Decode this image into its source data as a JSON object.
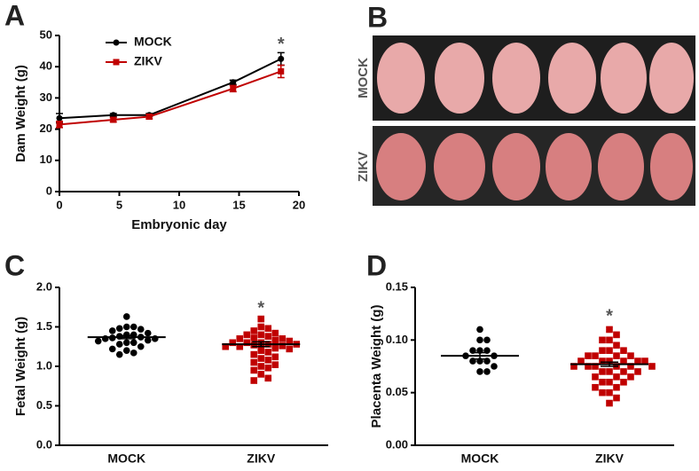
{
  "chart_data": [
    {
      "type": "line",
      "panel": "A",
      "xlabel": "Embryonic day",
      "ylabel": "Dam Weight (g)",
      "x": [
        0,
        4.5,
        7.5,
        14.5,
        18.5
      ],
      "series": [
        {
          "name": "MOCK",
          "color": "#000000",
          "marker": "circle",
          "values": [
            23.5,
            24.5,
            24.5,
            35,
            42.5
          ],
          "errors": [
            1.5,
            0.5,
            0.5,
            0.7,
            2
          ]
        },
        {
          "name": "ZIKV",
          "color": "#c00000",
          "marker": "square",
          "values": [
            21.5,
            23,
            24,
            33,
            38.5
          ],
          "errors": [
            1,
            0.7,
            0.7,
            1,
            2
          ]
        }
      ],
      "xlim": [
        0,
        20
      ],
      "xticks": [
        0,
        5,
        10,
        15,
        20
      ],
      "ylim": [
        0,
        50
      ],
      "yticks": [
        0,
        10,
        20,
        30,
        40,
        50
      ],
      "legend": "upper left",
      "annotations": [
        {
          "text": "*",
          "x": 18.5,
          "y": 47
        }
      ]
    },
    {
      "type": "strip",
      "panel": "C",
      "ylabel": "Fetal Weight (g)",
      "categories": [
        "MOCK",
        "ZIKV"
      ],
      "series": [
        {
          "color": "#000000",
          "marker": "circle",
          "mean": 1.37,
          "sem": 0.02,
          "values": [
            1.63,
            1.5,
            1.5,
            1.48,
            1.47,
            1.45,
            1.42,
            1.4,
            1.4,
            1.38,
            1.37,
            1.36,
            1.35,
            1.35,
            1.33,
            1.32,
            1.3,
            1.3,
            1.28,
            1.25,
            1.22,
            1.2,
            1.17,
            1.15
          ]
        },
        {
          "color": "#c00000",
          "marker": "square",
          "mean": 1.28,
          "sem": 0.03,
          "values": [
            1.6,
            1.5,
            1.48,
            1.45,
            1.42,
            1.4,
            1.4,
            1.38,
            1.36,
            1.35,
            1.35,
            1.33,
            1.32,
            1.3,
            1.3,
            1.3,
            1.28,
            1.28,
            1.27,
            1.26,
            1.25,
            1.25,
            1.23,
            1.22,
            1.2,
            1.18,
            1.15,
            1.12,
            1.1,
            1.08,
            1.05,
            1.02,
            1.0,
            0.98,
            0.95,
            0.9,
            0.85,
            0.82
          ]
        }
      ],
      "ylim": [
        0,
        2
      ],
      "yticks": [
        {
          "value": 0,
          "label": "0.0"
        },
        {
          "value": 0.5,
          "label": "0.5"
        },
        {
          "value": 1,
          "label": "1.0"
        },
        {
          "value": 1.5,
          "label": "1.5"
        },
        {
          "value": 2,
          "label": "2.0"
        }
      ],
      "annotations": [
        {
          "text": "*",
          "x": 1,
          "y": 1.73
        }
      ]
    },
    {
      "type": "strip",
      "panel": "D",
      "ylabel": "Placenta Weight (g)",
      "categories": [
        "MOCK",
        "ZIKV"
      ],
      "series": [
        {
          "color": "#000000",
          "marker": "circle",
          "mean": 0.085,
          "sem": 0.003,
          "values": [
            0.11,
            0.1,
            0.1,
            0.09,
            0.09,
            0.09,
            0.085,
            0.085,
            0.08,
            0.08,
            0.08,
            0.075,
            0.07,
            0.07
          ]
        },
        {
          "color": "#c00000",
          "marker": "square",
          "mean": 0.077,
          "sem": 0.002,
          "values": [
            0.11,
            0.105,
            0.1,
            0.1,
            0.095,
            0.09,
            0.09,
            0.09,
            0.085,
            0.085,
            0.085,
            0.085,
            0.08,
            0.08,
            0.08,
            0.08,
            0.08,
            0.08,
            0.075,
            0.075,
            0.075,
            0.075,
            0.075,
            0.075,
            0.07,
            0.07,
            0.07,
            0.07,
            0.065,
            0.065,
            0.065,
            0.06,
            0.06,
            0.06,
            0.055,
            0.055,
            0.05,
            0.05,
            0.045,
            0.04
          ]
        }
      ],
      "ylim": [
        0,
        0.15
      ],
      "yticks": [
        {
          "value": 0,
          "label": "0.00"
        },
        {
          "value": 0.05,
          "label": "0.05"
        },
        {
          "value": 0.1,
          "label": "0.10"
        },
        {
          "value": 0.15,
          "label": "0.15"
        }
      ],
      "annotations": [
        {
          "text": "*",
          "x": 1,
          "y": 0.122
        }
      ]
    }
  ],
  "photo_panel": {
    "panel": "B",
    "rows": [
      "MOCK",
      "ZIKV"
    ]
  }
}
